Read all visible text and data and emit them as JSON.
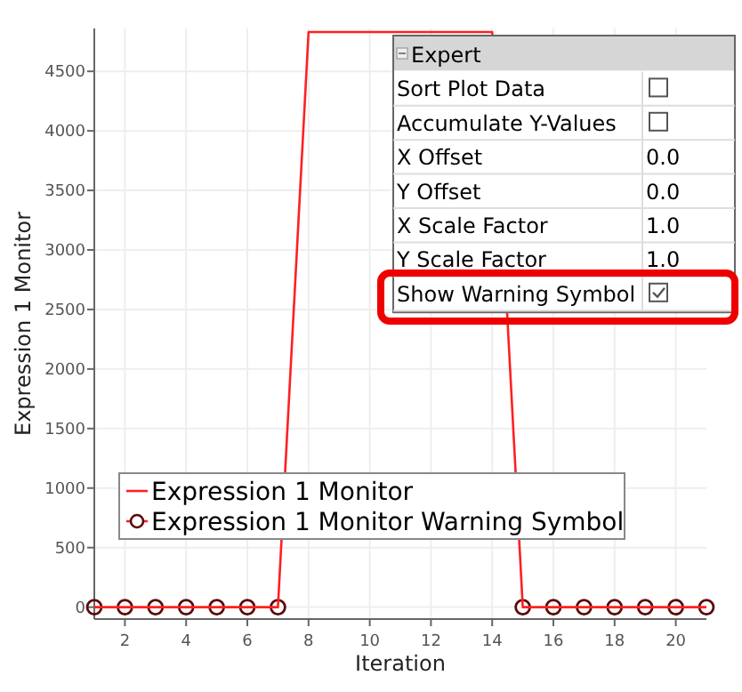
{
  "chart_data": {
    "type": "line",
    "xlabel": "Iteration",
    "ylabel": "Expression 1 Monitor",
    "x": [
      1,
      2,
      3,
      4,
      5,
      6,
      7,
      8,
      9,
      10,
      11,
      12,
      13,
      14,
      15,
      16,
      17,
      18,
      19,
      20,
      21
    ],
    "series": [
      {
        "name": "Expression 1 Monitor",
        "color": "#ff2020",
        "values": [
          0,
          0,
          0,
          0,
          0,
          0,
          0,
          4830,
          4830,
          4830,
          4830,
          4830,
          4830,
          4830,
          0,
          0,
          0,
          0,
          0,
          0,
          0
        ]
      },
      {
        "name": "Expression 1 Monitor Warning Symbol",
        "type": "scatter",
        "color": "#5a0a0a",
        "marker": "circle",
        "values": [
          0,
          0,
          0,
          0,
          0,
          0,
          0,
          null,
          null,
          null,
          null,
          null,
          null,
          null,
          0,
          0,
          0,
          0,
          0,
          0,
          0
        ]
      }
    ],
    "xlim": [
      1,
      21
    ],
    "xticks": [
      2,
      4,
      6,
      8,
      10,
      12,
      14,
      16,
      18,
      20
    ],
    "ylim": [
      -100,
      4860
    ],
    "yticks": [
      0,
      500,
      1000,
      1500,
      2000,
      2500,
      3000,
      3500,
      4000,
      4500
    ],
    "grid": true,
    "legend": "bottom left",
    "annotations": [
      "Expert",
      "Sort Plot Data",
      "Accumulate Y-Values",
      "X Offset",
      "0.0",
      "Y Offset",
      "0.0",
      "X Scale Factor",
      "1.0",
      "Y Scale Factor",
      "1.0",
      "Show Warning Symbol"
    ]
  }
}
